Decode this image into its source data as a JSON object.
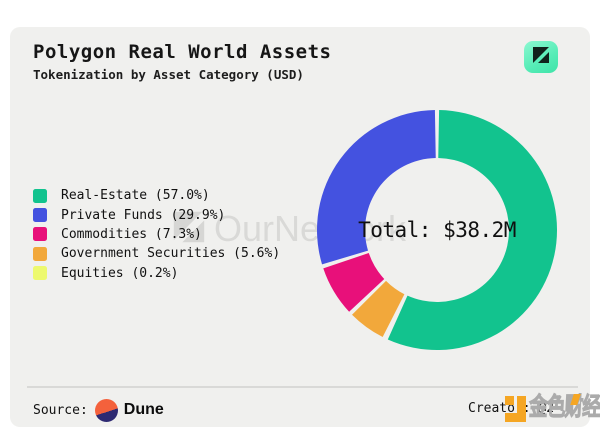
{
  "header": {
    "title": "Polygon Real World Assets",
    "subtitle": "Tokenization by Asset Category (USD)",
    "badge_icon": "ournetwork-logo",
    "badge_color": "#55ecb6"
  },
  "chart_data": {
    "type": "pie",
    "donut": true,
    "title": "Polygon Real World Assets",
    "subtitle": "Tokenization by Asset Category (USD)",
    "unit": "USD",
    "center_label": "Total: $38.2M",
    "total_musd": 38.2,
    "legend_position": "left",
    "slices": [
      {
        "label": "Real-Estate",
        "pct": 57.0,
        "color": "#12C38E"
      },
      {
        "label": "Private Funds",
        "pct": 29.9,
        "color": "#4452E0"
      },
      {
        "label": "Commodities",
        "pct": 7.3,
        "color": "#E8107A"
      },
      {
        "label": "Government Securities",
        "pct": 5.6,
        "color": "#F2A83B"
      },
      {
        "label": "Equities",
        "pct": 0.2,
        "color": "#EDF96E"
      }
    ],
    "render_order": [
      0,
      4,
      3,
      2,
      1
    ],
    "start_angle_deg": 0,
    "clockwise": true,
    "gap_deg": 2.0
  },
  "legend": {
    "items": [
      {
        "text": "Real-Estate (57.0%)",
        "color": "#12C38E"
      },
      {
        "text": "Private Funds (29.9%)",
        "color": "#4452E0"
      },
      {
        "text": "Commodities (7.3%)",
        "color": "#E8107A"
      },
      {
        "text": "Government Securities (5.6%)",
        "color": "#F2A83B"
      },
      {
        "text": "Equities (0.2%)",
        "color": "#EDF96E"
      }
    ]
  },
  "watermark": {
    "text": "OurNetwork"
  },
  "footer": {
    "source_label": "Source:",
    "source_name": "Dune",
    "credit": "Creator: @2"
  },
  "site_watermark": {
    "text": "金色财经"
  }
}
